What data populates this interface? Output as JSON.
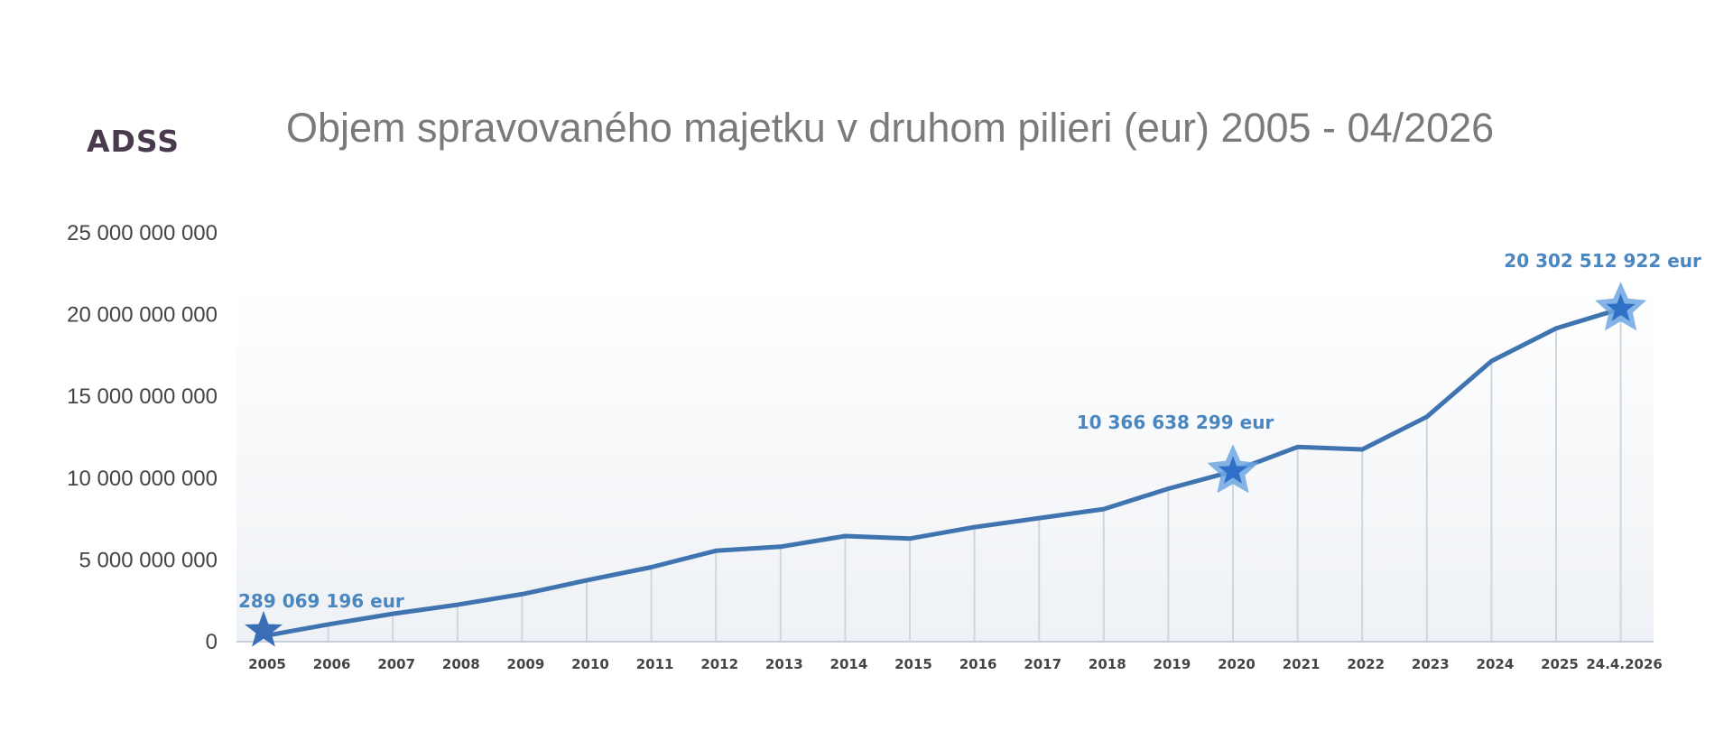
{
  "logo": {
    "text": "ADSS",
    "color": "#4a3a4e"
  },
  "colors": {
    "line": "#3f74b0",
    "star_outer": "#6fa6e0",
    "star_inner": "#2f6fc7",
    "annotation": "#4a86c0",
    "tick_text": "#444444",
    "title_text": "#7a7a7a",
    "vline": "#cfd6de"
  },
  "chart_data": {
    "type": "line",
    "title": "Objem spravovaného majetku v druhom pilieri (eur) 2005 - 04/2026",
    "xlabel": "",
    "ylabel": "",
    "categories": [
      "2005",
      "2006",
      "2007",
      "2008",
      "2009",
      "2010",
      "2011",
      "2012",
      "2013",
      "2014",
      "2015",
      "2016",
      "2017",
      "2018",
      "2019",
      "2020",
      "2021",
      "2022",
      "2023",
      "2024",
      "2025",
      "24.4.2026"
    ],
    "values": [
      289069196,
      1000000000,
      1650000000,
      2200000000,
      2850000000,
      3700000000,
      4500000000,
      5500000000,
      5750000000,
      6400000000,
      6250000000,
      6950000000,
      7500000000,
      8050000000,
      9300000000,
      10366638299,
      11850000000,
      11700000000,
      13700000000,
      17100000000,
      19100000000,
      20302512922
    ],
    "ylim": [
      0,
      25000000000
    ],
    "yticks": [
      0,
      5000000000,
      10000000000,
      15000000000,
      20000000000,
      25000000000
    ],
    "ytick_labels": [
      "0",
      "5 000 000 000",
      "10 000 000 000",
      "15 000 000 000",
      "20 000 000 000",
      "25 000 000 000"
    ],
    "grid": false,
    "annotations": [
      {
        "index": 0,
        "text": "289 069  196 eur"
      },
      {
        "index": 15,
        "text": "10 366 638 299 eur"
      },
      {
        "index": 21,
        "text": "20 302 512 922  eur"
      }
    ]
  }
}
